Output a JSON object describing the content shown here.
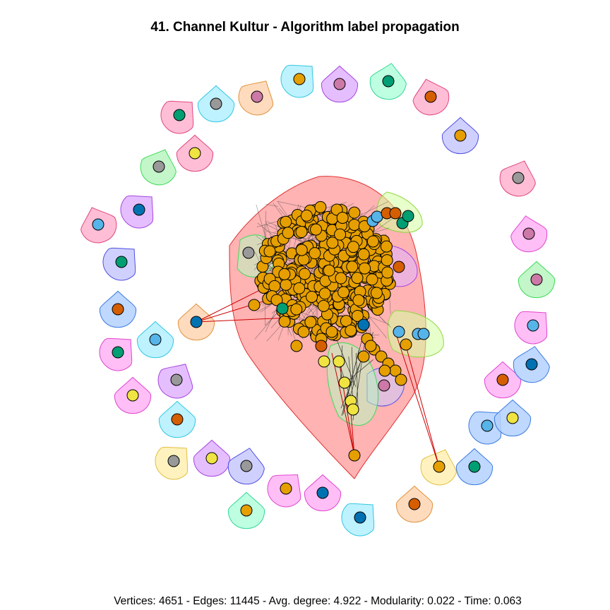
{
  "title": "41. Channel Kultur - Algorithm label propagation",
  "caption": "Vertices: 4651 - Edges: 11445 - Avg. degree: 4.922 - Modularity: 0.022 - Time: 0.063",
  "colors": {
    "node_main": "#E69F00",
    "node_green": "#009E73",
    "node_blue": "#0072B2",
    "node_sky": "#56B4E9",
    "node_red": "#D55E00",
    "node_pink": "#CC79A7",
    "node_yellow": "#F0E442",
    "node_gray": "#999999",
    "edge": "#cc0000",
    "main_community_fill": "#ff8080"
  },
  "palette": {
    "pink": [
      "#ffb3cf",
      "#e0457f"
    ],
    "cyan": [
      "#b3f0ff",
      "#33c7e0"
    ],
    "orange": [
      "#ffd5b3",
      "#e0913d"
    ],
    "violet": [
      "#e0b3ff",
      "#a645e0"
    ],
    "mint": [
      "#b3ffdc",
      "#33d697"
    ],
    "lavender": [
      "#c8c8ff",
      "#5050e0"
    ],
    "green": [
      "#b8f5c0",
      "#3ddb5a"
    ],
    "magenta": [
      "#ffb3f5",
      "#e045d0"
    ],
    "blue": [
      "#b3d1ff",
      "#3d7ae0"
    ],
    "yellow": [
      "#fff0b3",
      "#e0c040"
    ],
    "lime": [
      "#d4ff9e",
      "#8fd640"
    ]
  }
}
